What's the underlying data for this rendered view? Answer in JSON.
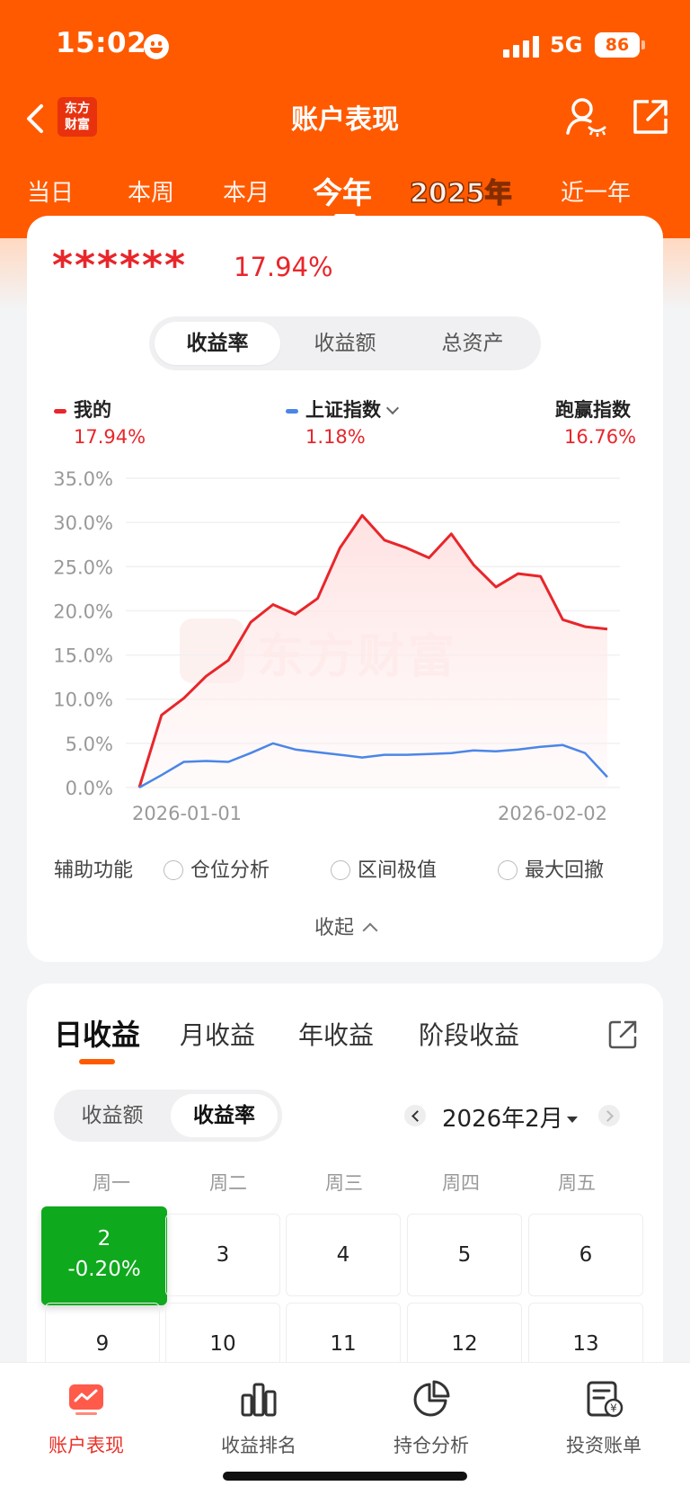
{
  "status": {
    "time": "15:02",
    "network": "5G",
    "battery": "86"
  },
  "nav": {
    "logo": "东方财富",
    "title": "账户表现"
  },
  "periods": [
    "当日",
    "本周",
    "本月",
    "今年",
    "2025年",
    "近一年"
  ],
  "summary": {
    "masked": "******",
    "rate": "17.94%"
  },
  "metric_tabs": [
    "收益率",
    "收益额",
    "总资产"
  ],
  "legend": {
    "mine": {
      "label": "我的",
      "value": "17.94%",
      "color": "#e8262b"
    },
    "index": {
      "label": "上证指数",
      "value": "1.18%",
      "color": "#4a86e8"
    },
    "beat": {
      "label": "跑赢指数",
      "value": "16.76%"
    }
  },
  "watermark": "东方财富",
  "chart_data": {
    "type": "line",
    "x_start_label": "2026-01-01",
    "x_end_label": "2026-02-02",
    "yticks": [
      "35.0%",
      "30.0%",
      "25.0%",
      "20.0%",
      "15.0%",
      "10.0%",
      "5.0%",
      "0.0%"
    ],
    "ylim": [
      0,
      35
    ],
    "series": [
      {
        "name": "我的",
        "color": "#e8262b",
        "values": [
          0,
          8.2,
          10.1,
          12.6,
          14.4,
          18.7,
          20.7,
          19.6,
          21.4,
          27.1,
          30.8,
          28.0,
          27.1,
          26.0,
          28.7,
          25.2,
          22.7,
          24.2,
          23.9,
          19.0,
          18.2,
          17.94
        ]
      },
      {
        "name": "上证指数",
        "color": "#4a86e8",
        "values": [
          0,
          1.4,
          2.9,
          3.0,
          2.9,
          3.9,
          5.0,
          4.3,
          4.0,
          3.7,
          3.4,
          3.7,
          3.7,
          3.8,
          3.9,
          4.2,
          4.1,
          4.3,
          4.6,
          4.8,
          3.9,
          1.18
        ]
      }
    ]
  },
  "aux": {
    "label": "辅助功能",
    "options": [
      "仓位分析",
      "区间极值",
      "最大回撤"
    ],
    "collapse": "收起"
  },
  "returns_tabs": [
    "日收益",
    "月收益",
    "年收益",
    "阶段收益"
  ],
  "returns_mode": [
    "收益额",
    "收益率"
  ],
  "month": "2026年2月",
  "weekdays": [
    "周一",
    "周二",
    "周三",
    "周四",
    "周五"
  ],
  "calendar": {
    "row1": [
      {
        "day": "2",
        "value": "-0.20%"
      },
      {
        "day": "3"
      },
      {
        "day": "4"
      },
      {
        "day": "5"
      },
      {
        "day": "6"
      }
    ],
    "row2": [
      {
        "day": "9"
      },
      {
        "day": "10"
      },
      {
        "day": "11"
      },
      {
        "day": "12"
      },
      {
        "day": "13"
      }
    ],
    "up_color": "#0fa91d"
  },
  "tabbar": [
    "账户表现",
    "收益排名",
    "持仓分析",
    "投资账单"
  ],
  "accent": "#ff5a00"
}
